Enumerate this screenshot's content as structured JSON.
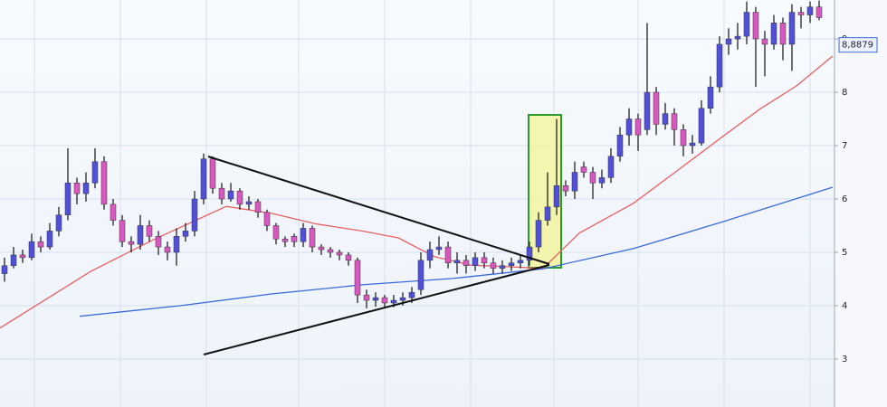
{
  "chart_data": {
    "type": "candlestick",
    "open": [
      4.6,
      4.75,
      4.95,
      4.9,
      5.2,
      5.1,
      5.4,
      5.7,
      6.3,
      6.1,
      6.3,
      6.7,
      5.9,
      5.6,
      5.2,
      5.15,
      5.5,
      5.3,
      5.1,
      5.0,
      5.3,
      5.4,
      6.0,
      6.75,
      6.2,
      6.0,
      6.15,
      5.9,
      5.95,
      5.75,
      5.5,
      5.25,
      5.3,
      5.2,
      5.45,
      5.1,
      5.05,
      5.0,
      4.95,
      4.85,
      4.2,
      4.1,
      4.15,
      4.05,
      4.1,
      4.15,
      4.3,
      4.85,
      5.05,
      5.1,
      4.8,
      4.85,
      4.75,
      4.9,
      4.8,
      4.7,
      4.75,
      4.8,
      4.85,
      5.1,
      5.6,
      5.85,
      6.25,
      6.15,
      6.6,
      6.5,
      6.3,
      6.4,
      6.8,
      7.2,
      7.5,
      7.3,
      8.0,
      7.4,
      7.6,
      7.3,
      7.0,
      7.05,
      7.7,
      8.1,
      8.9,
      9.0,
      9.05,
      9.5,
      9.0,
      8.9,
      9.3,
      8.9,
      9.5,
      9.45,
      9.6
    ],
    "high": [
      4.9,
      5.1,
      5.05,
      5.35,
      5.3,
      5.55,
      5.85,
      6.95,
      6.4,
      6.5,
      6.95,
      6.8,
      6.0,
      5.7,
      5.3,
      5.7,
      5.6,
      5.4,
      5.2,
      5.45,
      5.55,
      6.15,
      6.85,
      6.8,
      6.3,
      6.3,
      6.2,
      6.05,
      6.0,
      5.8,
      5.55,
      5.3,
      5.35,
      5.55,
      5.5,
      5.15,
      5.1,
      5.05,
      5.0,
      4.9,
      4.3,
      4.25,
      4.2,
      4.2,
      4.25,
      4.35,
      5.0,
      5.2,
      5.3,
      5.2,
      5.0,
      4.95,
      5.0,
      5.0,
      4.9,
      4.85,
      4.9,
      4.95,
      5.2,
      5.75,
      6.5,
      7.5,
      6.35,
      6.7,
      6.7,
      6.6,
      6.55,
      6.95,
      7.35,
      7.7,
      7.6,
      9.3,
      8.1,
      7.8,
      7.7,
      7.4,
      7.2,
      7.85,
      8.3,
      9.05,
      9.2,
      9.3,
      9.7,
      9.6,
      9.15,
      9.45,
      9.4,
      9.65,
      9.6,
      9.7,
      9.72
    ],
    "low": [
      4.45,
      4.7,
      4.8,
      4.85,
      5.0,
      5.05,
      5.3,
      5.6,
      5.9,
      5.95,
      6.2,
      5.8,
      5.5,
      5.1,
      5.0,
      5.05,
      5.2,
      4.95,
      4.85,
      4.75,
      5.2,
      5.3,
      5.9,
      6.1,
      5.9,
      5.95,
      5.8,
      5.8,
      5.65,
      5.4,
      5.15,
      5.1,
      5.1,
      5.1,
      5.0,
      4.95,
      4.9,
      4.85,
      4.75,
      4.05,
      3.95,
      3.98,
      3.95,
      3.97,
      4.0,
      4.05,
      4.2,
      4.7,
      4.95,
      4.7,
      4.6,
      4.6,
      4.65,
      4.7,
      4.6,
      4.6,
      4.65,
      4.7,
      4.75,
      5.0,
      5.5,
      5.7,
      6.05,
      6.0,
      6.4,
      6.0,
      6.2,
      6.3,
      6.7,
      7.0,
      6.9,
      7.2,
      7.2,
      7.3,
      7.0,
      6.8,
      6.85,
      7.0,
      7.6,
      8.0,
      8.7,
      8.8,
      8.9,
      8.1,
      8.3,
      8.8,
      8.6,
      8.4,
      9.2,
      9.3,
      9.35
    ],
    "close": [
      4.75,
      4.95,
      4.9,
      5.2,
      5.1,
      5.4,
      5.7,
      6.3,
      6.1,
      6.3,
      6.7,
      5.9,
      5.6,
      5.2,
      5.15,
      5.5,
      5.3,
      5.1,
      5.0,
      5.3,
      5.4,
      6.0,
      6.75,
      6.2,
      6.0,
      6.15,
      5.9,
      5.95,
      5.75,
      5.5,
      5.25,
      5.2,
      5.2,
      5.45,
      5.1,
      5.05,
      5.0,
      4.95,
      4.85,
      4.2,
      4.1,
      4.15,
      4.05,
      4.1,
      4.15,
      4.25,
      4.85,
      5.05,
      5.1,
      4.8,
      4.85,
      4.75,
      4.9,
      4.8,
      4.7,
      4.75,
      4.8,
      4.85,
      5.1,
      5.6,
      5.85,
      6.25,
      6.15,
      6.5,
      6.5,
      6.3,
      6.4,
      6.8,
      7.2,
      7.5,
      7.2,
      8.0,
      7.4,
      7.6,
      7.3,
      7.0,
      7.05,
      7.7,
      8.1,
      8.9,
      9.0,
      9.05,
      9.5,
      9.0,
      8.9,
      9.3,
      8.9,
      9.5,
      9.45,
      9.6,
      9.4
    ],
    "up_color": "#5050d8",
    "down_color": "#d858c0",
    "wick_color": "#111111",
    "overlays": [
      {
        "color": "#e86060",
        "x": [
          -0.5,
          9.5,
          16.5,
          24.5,
          29.5,
          34.5,
          39.5,
          43.5,
          47.5,
          51.5,
          55.5,
          59.5,
          63.5,
          69.5,
          75.5,
          79.5,
          83.5,
          87.5,
          91.5
        ],
        "values": [
          3.58,
          4.64,
          5.24,
          5.86,
          5.73,
          5.53,
          5.4,
          5.27,
          4.92,
          4.76,
          4.73,
          4.7,
          5.36,
          5.92,
          6.68,
          7.19,
          7.69,
          8.12,
          8.68
        ]
      },
      {
        "color": "#3a6ad8",
        "x": [
          8.3,
          19.5,
          29.5,
          39.5,
          49.5,
          59.5,
          69.5,
          79.5,
          91.5
        ],
        "values": [
          3.8,
          4.0,
          4.22,
          4.39,
          4.51,
          4.69,
          5.07,
          5.58,
          6.22
        ]
      }
    ],
    "ylim": [
      2.1,
      9.73
    ],
    "yticks": [
      3,
      4,
      5,
      6,
      7,
      8,
      9
    ],
    "grid": true,
    "last_value": {
      "value": 8.8879,
      "label": "8,8879"
    }
  }
}
